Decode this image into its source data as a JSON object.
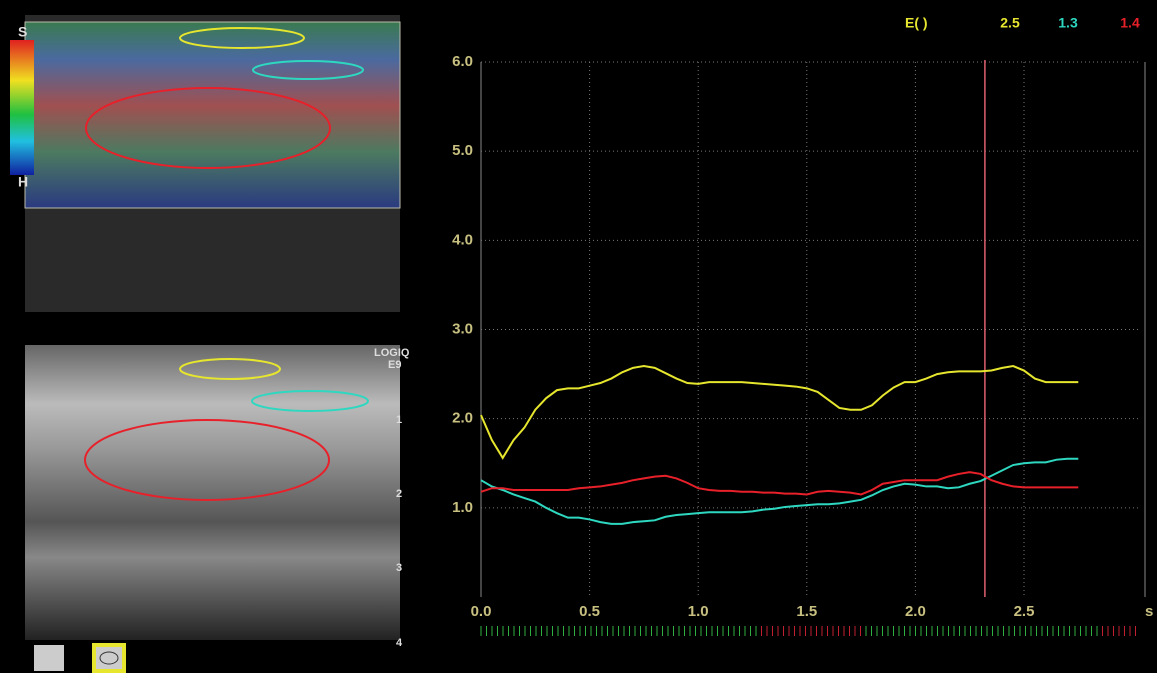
{
  "scanner": {
    "brand": "LOGIQ",
    "model": "E9",
    "scale_top": "S",
    "scale_bottom": "H",
    "depth_labels": [
      "1",
      "2",
      "3",
      "4"
    ]
  },
  "chart_data": {
    "type": "line",
    "legend_label": "E( )",
    "x_label": "s",
    "grid": true,
    "cursor_x": 2.32,
    "xlim": [
      0,
      3.0
    ],
    "ylim": [
      0,
      6.0
    ],
    "xticks": [
      {
        "value": 0,
        "label": "0.0"
      },
      0.5,
      {
        "value": 1,
        "label": "1.0"
      },
      1.5,
      {
        "value": 2,
        "label": "2.0"
      },
      2.5
    ],
    "yticks": [
      {
        "value": 1,
        "label": "1.0"
      },
      {
        "value": 2,
        "label": "2.0"
      },
      {
        "value": 3,
        "label": "3.0"
      },
      {
        "value": 4,
        "label": "4.0"
      },
      {
        "value": 5,
        "label": "5.0"
      },
      {
        "value": 6,
        "label": "6.0"
      }
    ],
    "x": [
      0.0,
      0.05,
      0.1,
      0.15,
      0.2,
      0.25,
      0.3,
      0.35,
      0.4,
      0.45,
      0.5,
      0.55,
      0.6,
      0.65,
      0.7,
      0.75,
      0.8,
      0.85,
      0.9,
      0.95,
      1.0,
      1.05,
      1.1,
      1.15,
      1.2,
      1.25,
      1.3,
      1.35,
      1.4,
      1.45,
      1.5,
      1.55,
      1.6,
      1.65,
      1.7,
      1.75,
      1.8,
      1.85,
      1.9,
      1.95,
      2.0,
      2.05,
      2.1,
      2.15,
      2.2,
      2.25,
      2.3,
      2.35,
      2.4,
      2.45,
      2.5,
      2.55,
      2.6,
      2.65,
      2.7,
      2.75
    ],
    "series": [
      {
        "color": "#e6e62e",
        "cursor_value": 2.5,
        "values": [
          2.04,
          1.76,
          1.56,
          1.76,
          1.9,
          2.1,
          2.23,
          2.32,
          2.34,
          2.34,
          2.37,
          2.4,
          2.45,
          2.52,
          2.57,
          2.59,
          2.57,
          2.51,
          2.45,
          2.4,
          2.39,
          2.41,
          2.41,
          2.41,
          2.41,
          2.4,
          2.39,
          2.38,
          2.37,
          2.36,
          2.34,
          2.3,
          2.21,
          2.12,
          2.1,
          2.1,
          2.15,
          2.26,
          2.35,
          2.41,
          2.41,
          2.45,
          2.5,
          2.52,
          2.53,
          2.53,
          2.53,
          2.54,
          2.57,
          2.59,
          2.54,
          2.45,
          2.41,
          2.41,
          2.41,
          2.41
        ]
      },
      {
        "color": "#2ed8c0",
        "cursor_value": 1.3,
        "values": [
          1.31,
          1.24,
          1.2,
          1.15,
          1.11,
          1.07,
          1.0,
          0.94,
          0.89,
          0.89,
          0.87,
          0.84,
          0.82,
          0.82,
          0.84,
          0.85,
          0.86,
          0.9,
          0.92,
          0.93,
          0.94,
          0.95,
          0.95,
          0.95,
          0.95,
          0.96,
          0.98,
          0.99,
          1.01,
          1.02,
          1.03,
          1.04,
          1.04,
          1.05,
          1.07,
          1.09,
          1.14,
          1.2,
          1.24,
          1.27,
          1.26,
          1.24,
          1.24,
          1.22,
          1.23,
          1.27,
          1.3,
          1.36,
          1.42,
          1.48,
          1.5,
          1.51,
          1.51,
          1.54,
          1.55,
          1.55
        ]
      },
      {
        "color": "#e8202a",
        "cursor_value": 1.4,
        "values": [
          1.18,
          1.22,
          1.22,
          1.2,
          1.2,
          1.2,
          1.2,
          1.2,
          1.2,
          1.22,
          1.23,
          1.24,
          1.26,
          1.28,
          1.31,
          1.33,
          1.35,
          1.36,
          1.33,
          1.28,
          1.22,
          1.2,
          1.19,
          1.19,
          1.18,
          1.18,
          1.17,
          1.17,
          1.16,
          1.16,
          1.15,
          1.18,
          1.19,
          1.18,
          1.17,
          1.15,
          1.2,
          1.27,
          1.29,
          1.31,
          1.31,
          1.31,
          1.31,
          1.35,
          1.38,
          1.4,
          1.38,
          1.31,
          1.27,
          1.24,
          1.23,
          1.23,
          1.23,
          1.23,
          1.23,
          1.23
        ]
      }
    ]
  }
}
